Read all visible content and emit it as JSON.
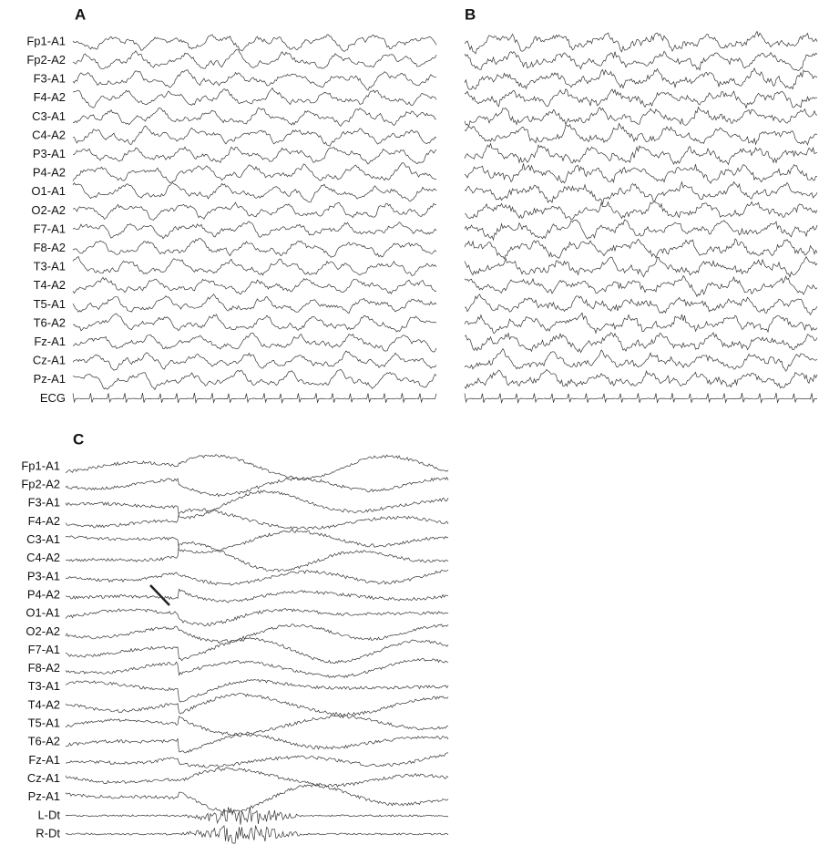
{
  "panels": [
    {
      "label": "A",
      "channels": [
        "Fp1-A1",
        "Fp2-A2",
        "F3-A1",
        "F4-A2",
        "C3-A1",
        "C4-A2",
        "P3-A1",
        "P4-A2",
        "O1-A1",
        "O2-A2",
        "F7-A1",
        "F8-A2",
        "T3-A1",
        "T4-A2",
        "T5-A1",
        "T6-A2",
        "Fz-A1",
        "Cz-A1",
        "Pz-A1",
        "ECG"
      ]
    },
    {
      "label": "B"
    },
    {
      "label": "C",
      "channels": [
        "Fp1-A1",
        "Fp2-A2",
        "F3-A1",
        "F4-A2",
        "C3-A1",
        "C4-A2",
        "P3-A1",
        "P4-A2",
        "O1-A1",
        "O2-A2",
        "F7-A1",
        "F8-A2",
        "T3-A1",
        "T4-A2",
        "T5-A1",
        "T6-A2",
        "Fz-A1",
        "Cz-A1",
        "Pz-A1",
        "L-Dt",
        "R-Dt"
      ]
    }
  ]
}
